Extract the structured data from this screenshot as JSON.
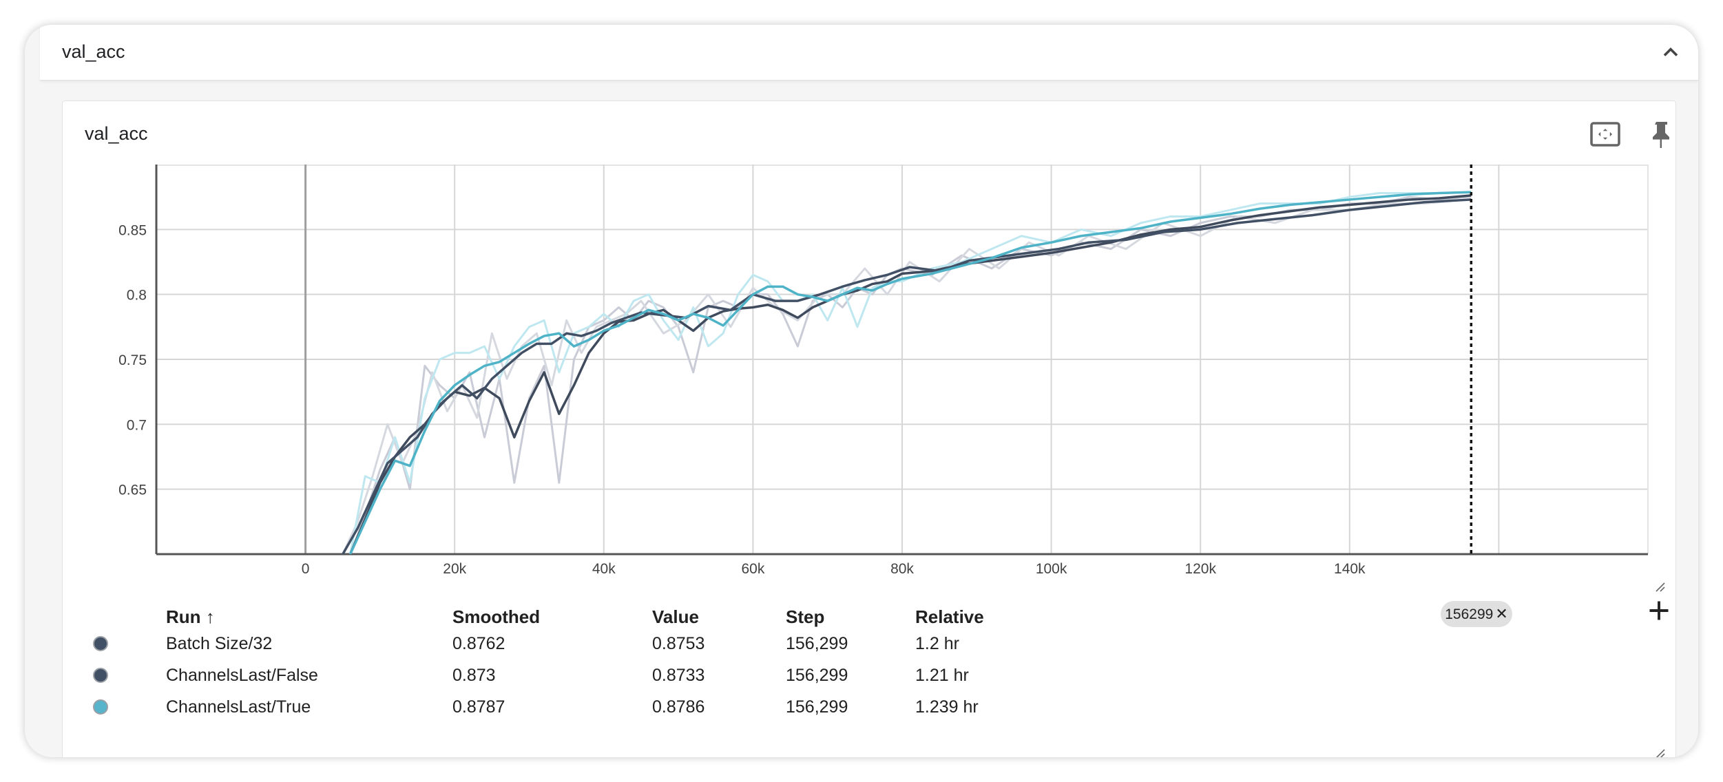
{
  "group": {
    "title": "val_acc"
  },
  "card": {
    "title": "val_acc"
  },
  "icons": {
    "collapse": "chevron-up-icon",
    "fit": "fit-to-domain-icon",
    "pin": "pin-icon",
    "fullscreen_exit": "exit-fullscreen-icon",
    "more": "more-vert-icon",
    "add": "add-icon"
  },
  "step_chip": {
    "label": "156299",
    "close": "✕"
  },
  "table": {
    "headers": {
      "run": "Run ↑",
      "smoothed": "Smoothed",
      "value": "Value",
      "step": "Step",
      "relative": "Relative"
    },
    "rows": [
      {
        "run": "Batch Size/32",
        "smoothed": "0.8762",
        "value": "0.8753",
        "step": "156,299",
        "relative": "1.2 hr",
        "color": "#425066"
      },
      {
        "run": "ChannelsLast/False",
        "smoothed": "0.873",
        "value": "0.8733",
        "step": "156,299",
        "relative": "1.21 hr",
        "color": "#425066"
      },
      {
        "run": "ChannelsLast/True",
        "smoothed": "0.8787",
        "value": "0.8786",
        "step": "156,299",
        "relative": "1.239 hr",
        "color": "#57b4ca"
      }
    ]
  },
  "chart_data": {
    "type": "line",
    "xlim": [
      -20000,
      180000
    ],
    "ylim": [
      0.6,
      0.9
    ],
    "x_ticks": [
      0,
      20000,
      40000,
      60000,
      80000,
      100000,
      120000,
      140000
    ],
    "x_tick_labels": [
      "0",
      "20k",
      "40k",
      "60k",
      "80k",
      "100k",
      "120k",
      "140k"
    ],
    "y_ticks": [
      0.65,
      0.7,
      0.75,
      0.8,
      0.85
    ],
    "y_tick_labels": [
      "0.65",
      "0.7",
      "0.75",
      "0.8",
      "0.85"
    ],
    "cursor_step": 156299,
    "grid": true,
    "series": [
      {
        "name": "Batch Size/32",
        "color": "#3f4b5d",
        "raw_color": "#c9ccd6",
        "x": [
          6000,
          8000,
          10000,
          12000,
          14000,
          16000,
          18000,
          20000,
          22000,
          24000,
          26000,
          28000,
          30000,
          32000,
          34000,
          36000,
          38000,
          40000,
          42000,
          44000,
          46000,
          48000,
          50000,
          52000,
          54000,
          56000,
          58000,
          60000,
          62000,
          64000,
          66000,
          68000,
          70000,
          72000,
          74000,
          76000,
          78000,
          80000,
          84000,
          88000,
          92000,
          96000,
          100000,
          104000,
          108000,
          112000,
          116000,
          120000,
          124000,
          128000,
          132000,
          136000,
          140000,
          144000,
          148000,
          152000,
          156299
        ],
        "smoothed": [
          0.6,
          0.627,
          0.655,
          0.675,
          0.69,
          0.7,
          0.715,
          0.725,
          0.722,
          0.728,
          0.72,
          0.69,
          0.718,
          0.74,
          0.708,
          0.73,
          0.755,
          0.77,
          0.779,
          0.78,
          0.785,
          0.788,
          0.78,
          0.772,
          0.782,
          0.787,
          0.789,
          0.79,
          0.792,
          0.788,
          0.782,
          0.79,
          0.795,
          0.8,
          0.803,
          0.808,
          0.81,
          0.816,
          0.818,
          0.823,
          0.826,
          0.829,
          0.832,
          0.836,
          0.84,
          0.846,
          0.85,
          0.852,
          0.857,
          0.861,
          0.864,
          0.867,
          0.869,
          0.871,
          0.873,
          0.874,
          0.8762
        ],
        "raw": [
          0.6,
          0.63,
          0.665,
          0.69,
          0.65,
          0.745,
          0.73,
          0.72,
          0.74,
          0.69,
          0.735,
          0.655,
          0.72,
          0.745,
          0.655,
          0.75,
          0.775,
          0.78,
          0.79,
          0.78,
          0.795,
          0.79,
          0.775,
          0.74,
          0.79,
          0.795,
          0.79,
          0.8,
          0.8,
          0.785,
          0.76,
          0.795,
          0.8,
          0.79,
          0.805,
          0.8,
          0.815,
          0.82,
          0.815,
          0.83,
          0.82,
          0.835,
          0.83,
          0.84,
          0.835,
          0.85,
          0.845,
          0.855,
          0.86,
          0.86,
          0.865,
          0.865,
          0.87,
          0.87,
          0.875,
          0.873,
          0.8753
        ]
      },
      {
        "name": "ChannelsLast/False",
        "color": "#425066",
        "raw_color": "#d5d8df",
        "x": [
          5000,
          7000,
          9000,
          11000,
          13000,
          15000,
          17000,
          19000,
          21000,
          23000,
          25000,
          27000,
          29000,
          31000,
          33000,
          35000,
          37000,
          39000,
          41000,
          43000,
          45000,
          48000,
          51000,
          54000,
          57000,
          60000,
          63000,
          66000,
          69000,
          72000,
          75000,
          78000,
          81000,
          85000,
          89000,
          93000,
          97000,
          101000,
          105000,
          110000,
          115000,
          120000,
          125000,
          130000,
          135000,
          140000,
          145000,
          150000,
          156299
        ],
        "smoothed": [
          0.6,
          0.62,
          0.645,
          0.67,
          0.68,
          0.69,
          0.708,
          0.72,
          0.73,
          0.72,
          0.735,
          0.745,
          0.755,
          0.762,
          0.762,
          0.77,
          0.768,
          0.772,
          0.778,
          0.782,
          0.786,
          0.784,
          0.782,
          0.791,
          0.788,
          0.8,
          0.795,
          0.795,
          0.8,
          0.806,
          0.811,
          0.815,
          0.821,
          0.818,
          0.826,
          0.829,
          0.832,
          0.835,
          0.84,
          0.842,
          0.848,
          0.85,
          0.855,
          0.858,
          0.861,
          0.865,
          0.868,
          0.871,
          0.873
        ],
        "raw": [
          0.6,
          0.625,
          0.66,
          0.7,
          0.67,
          0.695,
          0.74,
          0.71,
          0.73,
          0.705,
          0.77,
          0.735,
          0.76,
          0.77,
          0.73,
          0.78,
          0.755,
          0.775,
          0.78,
          0.785,
          0.795,
          0.77,
          0.78,
          0.8,
          0.775,
          0.805,
          0.79,
          0.78,
          0.8,
          0.8,
          0.82,
          0.8,
          0.825,
          0.81,
          0.835,
          0.82,
          0.84,
          0.83,
          0.845,
          0.835,
          0.855,
          0.845,
          0.86,
          0.855,
          0.865,
          0.865,
          0.87,
          0.87,
          0.8733
        ]
      },
      {
        "name": "ChannelsLast/True",
        "color": "#4fb3c8",
        "raw_color": "#bfe7f0",
        "x": [
          6000,
          8000,
          10000,
          12000,
          14000,
          16000,
          18000,
          20000,
          22000,
          24000,
          26000,
          28000,
          30000,
          32000,
          34000,
          36000,
          38000,
          40000,
          42000,
          44000,
          46000,
          48000,
          50000,
          52000,
          54000,
          56000,
          58000,
          60000,
          62000,
          64000,
          66000,
          68000,
          70000,
          72000,
          74000,
          76000,
          78000,
          80000,
          84000,
          88000,
          92000,
          96000,
          100000,
          104000,
          108000,
          112000,
          116000,
          120000,
          124000,
          128000,
          132000,
          136000,
          140000,
          144000,
          148000,
          152000,
          156299
        ],
        "smoothed": [
          0.6,
          0.625,
          0.65,
          0.672,
          0.668,
          0.695,
          0.718,
          0.73,
          0.738,
          0.745,
          0.748,
          0.755,
          0.762,
          0.768,
          0.77,
          0.76,
          0.765,
          0.772,
          0.776,
          0.782,
          0.788,
          0.785,
          0.78,
          0.785,
          0.782,
          0.776,
          0.788,
          0.8,
          0.806,
          0.806,
          0.8,
          0.798,
          0.795,
          0.8,
          0.805,
          0.803,
          0.808,
          0.812,
          0.816,
          0.822,
          0.828,
          0.836,
          0.84,
          0.845,
          0.848,
          0.851,
          0.856,
          0.859,
          0.862,
          0.866,
          0.869,
          0.871,
          0.873,
          0.875,
          0.877,
          0.878,
          0.8787
        ],
        "raw": [
          0.6,
          0.66,
          0.655,
          0.69,
          0.655,
          0.72,
          0.75,
          0.755,
          0.755,
          0.76,
          0.735,
          0.76,
          0.775,
          0.78,
          0.74,
          0.77,
          0.775,
          0.785,
          0.775,
          0.795,
          0.8,
          0.78,
          0.765,
          0.79,
          0.76,
          0.77,
          0.8,
          0.815,
          0.81,
          0.795,
          0.795,
          0.8,
          0.78,
          0.805,
          0.775,
          0.805,
          0.81,
          0.81,
          0.82,
          0.825,
          0.835,
          0.845,
          0.84,
          0.85,
          0.845,
          0.855,
          0.86,
          0.86,
          0.865,
          0.87,
          0.87,
          0.87,
          0.875,
          0.878,
          0.878,
          0.878,
          0.8786
        ]
      }
    ]
  }
}
